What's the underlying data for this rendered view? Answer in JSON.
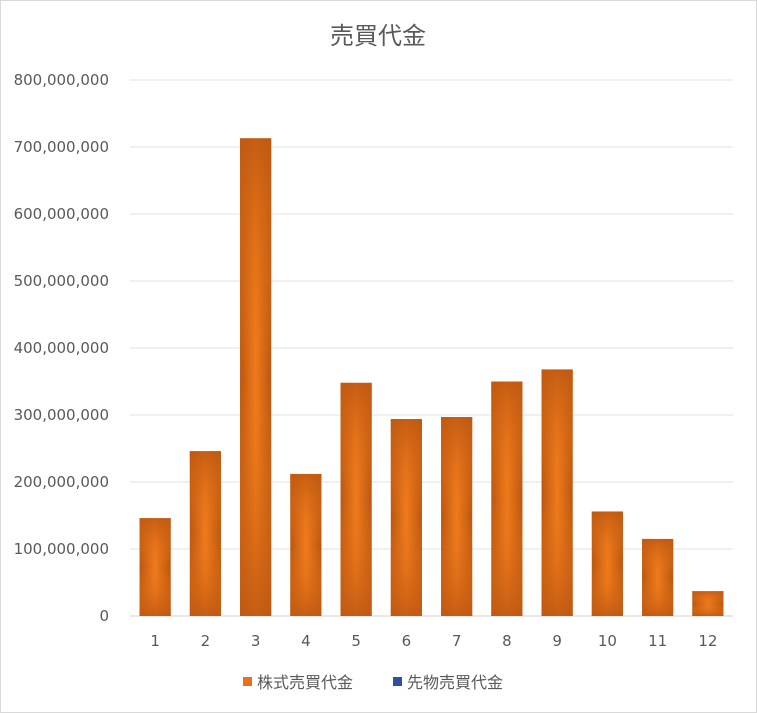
{
  "chart_data": {
    "type": "bar",
    "title": "売買代金",
    "categories": [
      "1",
      "2",
      "3",
      "4",
      "5",
      "6",
      "7",
      "8",
      "9",
      "10",
      "11",
      "12"
    ],
    "series": [
      {
        "name": "株式売買代金",
        "color": "#e8711a",
        "values": [
          146000000,
          246000000,
          713000000,
          212000000,
          348000000,
          294000000,
          297000000,
          350000000,
          368000000,
          156000000,
          115000000,
          37000000
        ]
      },
      {
        "name": "先物売買代金",
        "color": "#2e4fa3",
        "values": [
          0,
          0,
          0,
          0,
          0,
          0,
          0,
          0,
          0,
          0,
          0,
          0
        ]
      }
    ],
    "yticks": [
      "0",
      "100,000,000",
      "200,000,000",
      "300,000,000",
      "400,000,000",
      "500,000,000",
      "600,000,000",
      "700,000,000",
      "800,000,000"
    ],
    "ylim": [
      0,
      800000000
    ],
    "grid": true,
    "legend_position": "bottom"
  }
}
